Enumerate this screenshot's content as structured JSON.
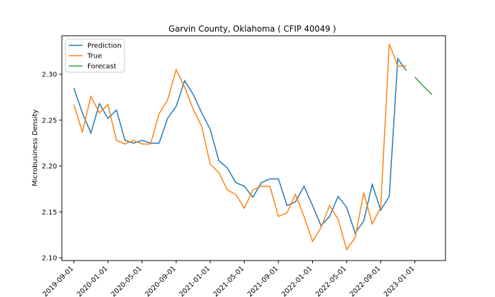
{
  "chart_data": {
    "type": "line",
    "title": "Garvin County, Oklahoma ( CFIP 40049 )",
    "xlabel": "",
    "ylabel": "Microbusiness Density",
    "x_start": "2019-09-01",
    "x_ticks": [
      "2019-09-01",
      "2020-01-01",
      "2020-05-01",
      "2020-09-01",
      "2021-01-01",
      "2021-05-01",
      "2021-09-01",
      "2022-01-01",
      "2022-05-01",
      "2022-09-01",
      "2023-01-01"
    ],
    "y_ticks": [
      "2.10",
      "2.15",
      "2.20",
      "2.25",
      "2.30"
    ],
    "ylim": [
      2.097,
      2.342
    ],
    "xlim_months": [
      -1.4,
      43.6
    ],
    "legend_position": "upper-left",
    "series": [
      {
        "name": "Prediction",
        "color": "#1f77b4",
        "start_month": 0,
        "values": [
          2.285,
          2.258,
          2.236,
          2.268,
          2.252,
          2.261,
          2.228,
          2.225,
          2.228,
          2.225,
          2.225,
          2.252,
          2.265,
          2.293,
          2.278,
          2.258,
          2.24,
          2.206,
          2.198,
          2.182,
          2.178,
          2.166,
          2.182,
          2.186,
          2.186,
          2.157,
          2.161,
          2.178,
          2.157,
          2.135,
          2.145,
          2.167,
          2.155,
          2.127,
          2.14,
          2.18,
          2.152,
          2.167,
          2.317,
          2.304
        ]
      },
      {
        "name": "True",
        "color": "#ff7f0e",
        "start_month": 0,
        "values": [
          2.267,
          2.237,
          2.276,
          2.258,
          2.267,
          2.228,
          2.224,
          2.228,
          2.224,
          2.224,
          2.257,
          2.272,
          2.305,
          2.286,
          2.262,
          2.243,
          2.202,
          2.193,
          2.174,
          2.169,
          2.154,
          2.174,
          2.178,
          2.178,
          2.145,
          2.149,
          2.169,
          2.145,
          2.118,
          2.133,
          2.157,
          2.142,
          2.109,
          2.122,
          2.171,
          2.137,
          2.155,
          2.333,
          2.309,
          2.309
        ]
      },
      {
        "name": "Forecast",
        "color": "#2ca02c",
        "start_month": 40,
        "values": [
          2.297,
          2.287,
          2.278
        ]
      }
    ]
  }
}
